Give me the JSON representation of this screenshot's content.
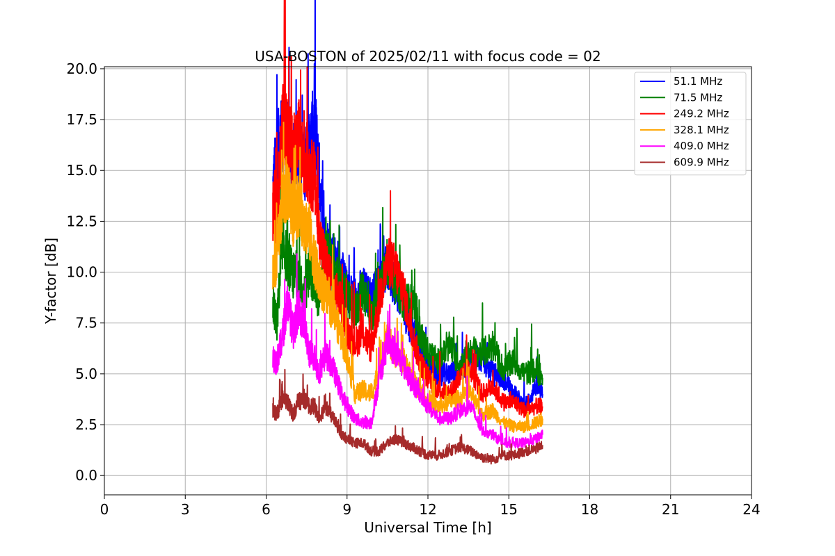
{
  "chart_data": {
    "type": "line",
    "title": "USA-BOSTON of 2025/02/11 with focus code = 02",
    "xlabel": "Universal Time [h]",
    "ylabel": "Y-factor [dB]",
    "xlim": [
      0,
      24
    ],
    "ylim": [
      -0.95,
      20.1
    ],
    "xticks": [
      "0",
      "3",
      "6",
      "9",
      "12",
      "15",
      "18",
      "21",
      "24"
    ],
    "yticks": [
      "0.0",
      "2.5",
      "5.0",
      "7.5",
      "10.0",
      "12.5",
      "15.0",
      "17.5",
      "20.0"
    ],
    "grid": true,
    "legend_position": "top-right",
    "series": [
      {
        "name": "51.1 MHz",
        "color": "#0000ff",
        "x": [
          6.25,
          6.4,
          6.6,
          6.8,
          7.0,
          7.2,
          7.4,
          7.6,
          7.8,
          7.95,
          8.2,
          8.5,
          8.8,
          9.0,
          9.3,
          9.6,
          9.9,
          10.2,
          10.5,
          10.8,
          11.1,
          11.4,
          11.7,
          12.0,
          12.4,
          12.8,
          13.2,
          13.6,
          14.0,
          14.4,
          14.8,
          15.2,
          15.6,
          16.0,
          16.25
        ],
        "y": [
          14.0,
          15.8,
          17.0,
          16.5,
          15.5,
          16.0,
          15.2,
          16.0,
          17.5,
          15.0,
          11.5,
          10.8,
          10.0,
          9.0,
          8.8,
          9.2,
          8.6,
          9.6,
          10.2,
          9.4,
          8.2,
          7.2,
          6.6,
          5.4,
          5.0,
          5.0,
          5.2,
          5.6,
          5.8,
          5.0,
          4.8,
          4.0,
          3.4,
          4.4,
          4.0
        ]
      },
      {
        "name": "71.5 MHz",
        "color": "#008000",
        "x": [
          6.25,
          6.4,
          6.6,
          6.8,
          7.0,
          7.2,
          7.4,
          7.6,
          7.8,
          7.95,
          8.2,
          8.5,
          8.8,
          9.0,
          9.3,
          9.6,
          9.9,
          10.2,
          10.5,
          10.8,
          11.1,
          11.4,
          11.7,
          12.0,
          12.4,
          12.8,
          13.2,
          13.6,
          14.0,
          14.4,
          14.8,
          15.2,
          15.6,
          16.0,
          16.25
        ],
        "y": [
          8.5,
          7.5,
          11.5,
          10.5,
          9.8,
          10.0,
          8.6,
          10.2,
          9.4,
          8.6,
          11.0,
          10.0,
          9.2,
          8.6,
          8.0,
          9.2,
          7.8,
          9.0,
          10.5,
          9.6,
          8.6,
          8.4,
          7.0,
          6.0,
          5.6,
          6.4,
          5.4,
          6.2,
          6.0,
          6.4,
          5.2,
          5.6,
          5.0,
          5.2,
          4.8
        ]
      },
      {
        "name": "249.2 MHz",
        "color": "#ff0000",
        "x": [
          6.25,
          6.4,
          6.6,
          6.8,
          7.0,
          7.2,
          7.4,
          7.6,
          7.8,
          7.95,
          8.2,
          8.5,
          8.8,
          9.0,
          9.3,
          9.6,
          9.9,
          10.2,
          10.5,
          10.8,
          11.1,
          11.4,
          11.7,
          12.0,
          12.4,
          12.8,
          13.2,
          13.6,
          14.0,
          14.4,
          14.8,
          15.2,
          15.6,
          16.0,
          16.25
        ],
        "y": [
          13.0,
          12.8,
          17.5,
          16.8,
          15.8,
          16.6,
          15.5,
          15.0,
          14.5,
          12.0,
          10.5,
          9.2,
          8.4,
          7.0,
          6.5,
          7.0,
          6.2,
          8.6,
          10.5,
          10.2,
          9.0,
          7.0,
          5.6,
          4.8,
          4.2,
          4.0,
          4.8,
          5.2,
          4.0,
          4.4,
          3.6,
          3.6,
          3.2,
          3.4,
          3.4
        ]
      },
      {
        "name": "328.1 MHz",
        "color": "#ffa500",
        "x": [
          6.25,
          6.4,
          6.6,
          6.8,
          7.0,
          7.2,
          7.4,
          7.6,
          7.8,
          7.95,
          8.2,
          8.5,
          8.8,
          9.0,
          9.3,
          9.6,
          9.9,
          10.2,
          10.5,
          10.8,
          11.1,
          11.4,
          11.7,
          12.0,
          12.4,
          12.8,
          13.2,
          13.6,
          14.0,
          14.4,
          14.8,
          15.2,
          15.6,
          16.0,
          16.25
        ],
        "y": [
          10.0,
          10.8,
          13.5,
          14.2,
          12.8,
          13.4,
          12.5,
          12.0,
          10.5,
          9.6,
          8.8,
          8.0,
          6.8,
          5.8,
          4.0,
          4.2,
          4.0,
          5.2,
          6.8,
          6.0,
          5.6,
          4.8,
          4.2,
          3.6,
          3.4,
          3.6,
          3.8,
          4.0,
          3.0,
          3.2,
          2.6,
          2.4,
          2.4,
          2.6,
          2.8
        ]
      },
      {
        "name": "409.0 MHz",
        "color": "#ff00ff",
        "x": [
          6.25,
          6.4,
          6.6,
          6.8,
          7.0,
          7.2,
          7.4,
          7.6,
          7.8,
          7.95,
          8.2,
          8.5,
          8.8,
          9.0,
          9.3,
          9.6,
          9.9,
          10.2,
          10.5,
          10.8,
          11.1,
          11.4,
          11.7,
          12.0,
          12.4,
          12.8,
          13.2,
          13.6,
          14.0,
          14.4,
          14.8,
          15.2,
          15.6,
          16.0,
          16.25
        ],
        "y": [
          5.8,
          5.6,
          6.8,
          8.6,
          7.0,
          8.2,
          7.4,
          6.0,
          5.8,
          5.0,
          6.0,
          5.2,
          4.0,
          3.4,
          2.8,
          2.6,
          2.6,
          4.8,
          6.6,
          6.0,
          5.4,
          4.6,
          4.0,
          3.4,
          2.8,
          2.8,
          3.2,
          3.4,
          2.2,
          2.0,
          1.6,
          1.6,
          1.6,
          1.8,
          2.0
        ]
      },
      {
        "name": "609.9 MHz",
        "color": "#a52a2a",
        "x": [
          6.25,
          6.4,
          6.6,
          6.8,
          7.0,
          7.2,
          7.4,
          7.6,
          7.8,
          7.95,
          8.2,
          8.5,
          8.8,
          9.0,
          9.3,
          9.6,
          9.9,
          10.2,
          10.5,
          10.8,
          11.1,
          11.4,
          11.7,
          12.0,
          12.4,
          12.8,
          13.2,
          13.6,
          14.0,
          14.4,
          14.8,
          15.2,
          15.6,
          16.0,
          16.25
        ],
        "y": [
          3.2,
          3.0,
          3.8,
          3.6,
          3.0,
          3.6,
          3.8,
          3.4,
          3.4,
          2.8,
          3.4,
          2.8,
          2.0,
          1.8,
          1.6,
          1.6,
          1.2,
          1.2,
          1.6,
          1.8,
          1.6,
          1.4,
          1.2,
          1.0,
          1.0,
          1.2,
          1.4,
          1.2,
          0.9,
          0.8,
          1.0,
          1.0,
          1.2,
          1.3,
          1.5
        ]
      }
    ]
  }
}
